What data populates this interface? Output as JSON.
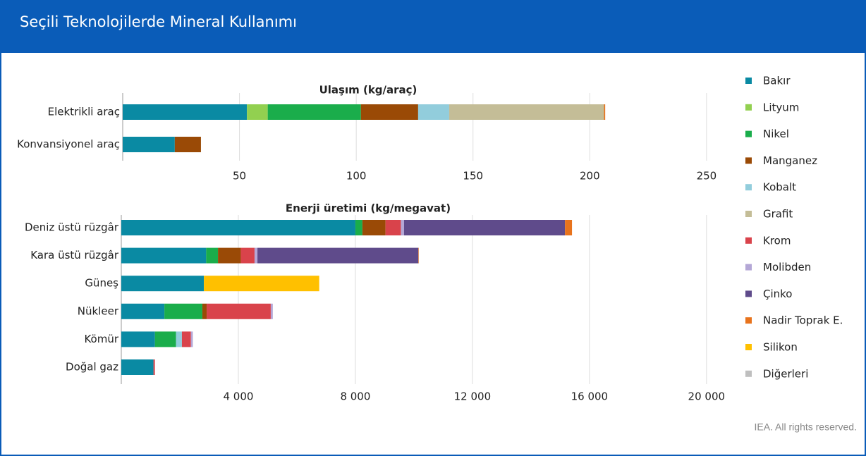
{
  "title": "Seçili Teknolojilerde Mineral Kullanımı",
  "footer": "IEA. All rights reserved.",
  "chart_data": [
    {
      "type": "bar",
      "orientation": "horizontal",
      "stacked": true,
      "title": "Ulaşım (kg/araç)",
      "grid": true,
      "categories": [
        "Elektrikli araç",
        "Konvansiyonel araç"
      ],
      "xlim": [
        0,
        260
      ],
      "xticks": [
        50,
        100,
        150,
        200,
        250
      ],
      "series": [
        {
          "name": "Bakır",
          "color": "#0a8aa3",
          "values": [
            53.2,
            22.3
          ]
        },
        {
          "name": "Lityum",
          "color": "#92d050",
          "values": [
            8.9,
            null
          ]
        },
        {
          "name": "Nikel",
          "color": "#1aad4b",
          "values": [
            39.9,
            null
          ]
        },
        {
          "name": "Manganez",
          "color": "#9a4a06",
          "values": [
            24.5,
            11.2
          ]
        },
        {
          "name": "Kobalt",
          "color": "#92cddc",
          "values": [
            13.3,
            null
          ]
        },
        {
          "name": "Grafit",
          "color": "#c4bd97",
          "values": [
            66.3,
            null
          ]
        },
        {
          "name": "Krom",
          "color": "#d9434b",
          "values": [
            null,
            null
          ]
        },
        {
          "name": "Molibden",
          "color": "#b4a7d6",
          "values": [
            null,
            null
          ]
        },
        {
          "name": "Çinko",
          "color": "#5f4b8b",
          "values": [
            null,
            null
          ]
        },
        {
          "name": "Nadir Toprak E.",
          "color": "#e8731c",
          "values": [
            0.5,
            null
          ]
        },
        {
          "name": "Silikon",
          "color": "#ffc000",
          "values": [
            null,
            null
          ]
        },
        {
          "name": "Diğerleri",
          "color": "#bfbfbf",
          "values": [
            null,
            null
          ]
        }
      ]
    },
    {
      "type": "bar",
      "orientation": "horizontal",
      "stacked": true,
      "title": "Enerji üretimi (kg/megavat)",
      "grid": true,
      "categories": [
        "Deniz üstü rüzgâr",
        "Kara üstü rüzgâr",
        "Güneş",
        "Nükleer",
        "Kömür",
        "Doğal gaz"
      ],
      "xlim": [
        0,
        20800
      ],
      "xticks": [
        {
          "value": 4000,
          "label": "4 000"
        },
        {
          "value": 8000,
          "label": "8 000"
        },
        {
          "value": 12000,
          "label": "12 000"
        },
        {
          "value": 16000,
          "label": "16 000"
        },
        {
          "value": 20000,
          "label": "20 000"
        }
      ],
      "series": [
        {
          "color": "#0a8aa3",
          "values": [
            8000,
            2900,
            2822,
            1473,
            1150,
            1100
          ]
        },
        {
          "color": "#92d050",
          "values": [
            null,
            null,
            null,
            null,
            null,
            null
          ]
        },
        {
          "color": "#1aad4b",
          "values": [
            240,
            404,
            null,
            1297,
            721,
            null
          ]
        },
        {
          "color": "#9a4a06",
          "values": [
            790,
            780,
            null,
            148,
            null,
            null
          ]
        },
        {
          "color": "#92cddc",
          "values": [
            null,
            null,
            null,
            null,
            200,
            null
          ]
        },
        {
          "color": "#c4bd97",
          "values": [
            null,
            null,
            null,
            null,
            null,
            null
          ]
        },
        {
          "color": "#d9434b",
          "values": [
            525,
            470,
            null,
            2190,
            308,
            48
          ]
        },
        {
          "color": "#b4a7d6",
          "values": [
            109,
            99,
            null,
            70,
            66,
            null
          ]
        },
        {
          "color": "#5f4b8b",
          "values": [
            5500,
            5500,
            null,
            null,
            null,
            null
          ]
        },
        {
          "color": "#e8731c",
          "values": [
            239,
            14,
            null,
            null,
            null,
            null
          ]
        },
        {
          "color": "#ffc000",
          "values": [
            null,
            null,
            3942,
            null,
            null,
            null
          ]
        },
        {
          "color": "#bfbfbf",
          "values": [
            null,
            null,
            null,
            null,
            null,
            null
          ]
        }
      ]
    }
  ]
}
